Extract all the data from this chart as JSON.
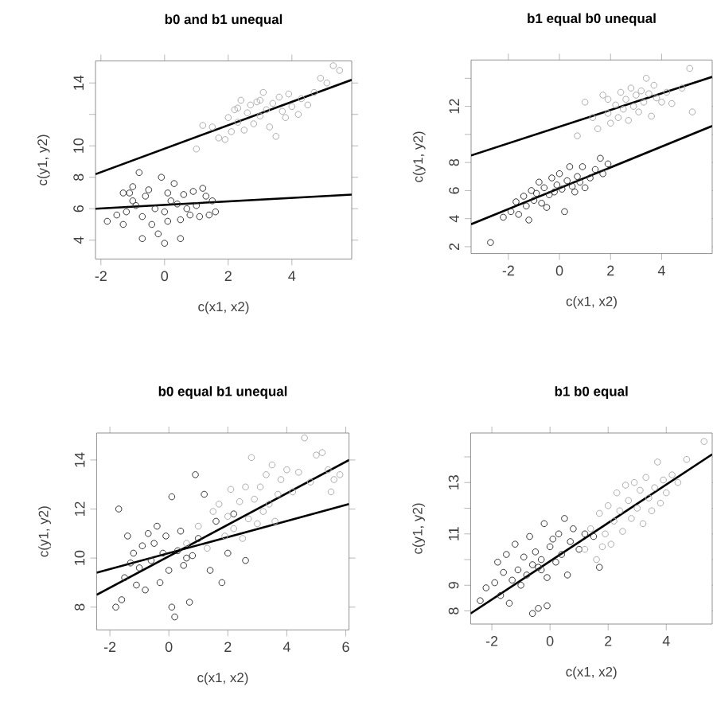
{
  "chart_data": [
    {
      "type": "scatter",
      "title": "b0 and b1 unequal",
      "xlabel": "c(x1, x2)",
      "ylabel": "c(y1, y2)",
      "xlim": [
        -2.17,
        5.88
      ],
      "ylim": [
        2.8,
        15.4
      ],
      "xticks": [
        -2,
        0,
        2,
        4
      ],
      "yticks": [
        4,
        6,
        8,
        10,
        {
          "value": 12,
          "label": null
        },
        14
      ],
      "series": [
        {
          "type": "scatter",
          "marker": "circle",
          "color": "#333333",
          "x": [
            -1.8,
            -1.5,
            -1.3,
            -1.2,
            -1.1,
            -1.0,
            -1.0,
            -0.9,
            -0.8,
            -0.7,
            -0.7,
            -0.6,
            -0.5,
            -0.4,
            -0.3,
            -0.2,
            -0.1,
            0,
            0,
            0.1,
            0.1,
            0.2,
            0.3,
            0.4,
            0.5,
            0.5,
            0.6,
            0.7,
            0.8,
            0.9,
            1.0,
            1.1,
            1.2,
            1.3,
            1.4,
            1.6,
            1.5,
            -1.3
          ],
          "values": [
            5.2,
            5.6,
            5.0,
            5.8,
            7.0,
            6.5,
            7.4,
            6.2,
            8.3,
            5.5,
            4.1,
            6.8,
            7.2,
            5.0,
            6.0,
            4.4,
            8.0,
            3.8,
            5.8,
            7.0,
            5.2,
            6.5,
            7.6,
            6.3,
            5.3,
            4.1,
            6.9,
            6.0,
            5.6,
            7.1,
            6.2,
            5.5,
            7.3,
            6.8,
            5.6,
            5.8,
            6.5,
            7.0
          ]
        },
        {
          "type": "scatter",
          "marker": "circle",
          "color": "#aaaaaa",
          "x": [
            1.0,
            1.2,
            1.5,
            1.7,
            1.9,
            2.0,
            2.1,
            2.2,
            2.3,
            2.4,
            2.5,
            2.6,
            2.7,
            2.8,
            2.9,
            3.0,
            3.1,
            3.2,
            3.3,
            3.4,
            3.5,
            3.6,
            3.7,
            3.8,
            3.9,
            4.0,
            4.2,
            4.3,
            4.5,
            4.7,
            4.9,
            5.1,
            5.3,
            5.5,
            2.3,
            3.0
          ],
          "values": [
            9.8,
            11.3,
            11.2,
            10.5,
            10.4,
            11.8,
            10.9,
            12.3,
            11.5,
            12.9,
            11.0,
            12.1,
            12.6,
            11.4,
            12.8,
            11.9,
            13.4,
            12.3,
            11.2,
            12.7,
            10.6,
            13.1,
            12.2,
            11.8,
            13.3,
            12.5,
            12.0,
            13.0,
            12.6,
            13.4,
            14.3,
            14.0,
            15.1,
            14.8,
            12.4,
            12.9
          ]
        },
        {
          "type": "line",
          "marker": "none",
          "color": "#000000",
          "x": [
            -2.17,
            5.88
          ],
          "values": [
            6.0,
            6.9
          ]
        },
        {
          "type": "line",
          "marker": "none",
          "color": "#000000",
          "x": [
            -2.17,
            5.88
          ],
          "values": [
            8.2,
            14.2
          ]
        }
      ]
    },
    {
      "type": "scatter",
      "title": "b1 equal b0 unequal",
      "xlabel": "c(x1, x2)",
      "ylabel": "c(y1, y2)",
      "xlim": [
        -3.46,
        5.98
      ],
      "ylim": [
        1.51,
        15.3
      ],
      "xticks": [
        -2,
        0,
        2,
        4
      ],
      "yticks": [
        2,
        4,
        6,
        8,
        {
          "value": 10,
          "label": null
        },
        12,
        {
          "value": 14,
          "label": null
        }
      ],
      "series": [
        {
          "type": "scatter",
          "marker": "circle",
          "color": "#333333",
          "x": [
            -2.7,
            -2.2,
            -1.9,
            -1.7,
            -1.6,
            -1.4,
            -1.3,
            -1.1,
            -1.0,
            -0.9,
            -0.8,
            -0.7,
            -0.6,
            -0.5,
            -0.4,
            -0.3,
            -0.2,
            -0.1,
            0,
            0.1,
            0.2,
            0.3,
            0.4,
            0.5,
            0.6,
            0.7,
            0.8,
            0.9,
            1.0,
            1.2,
            1.4,
            1.6,
            1.7,
            1.9,
            -1.2
          ],
          "values": [
            2.3,
            4.1,
            4.5,
            5.2,
            4.3,
            5.6,
            4.9,
            6.0,
            5.3,
            5.8,
            6.6,
            5.1,
            6.2,
            4.8,
            5.7,
            6.9,
            5.9,
            6.4,
            7.2,
            6.1,
            4.5,
            6.7,
            7.7,
            6.3,
            5.9,
            7.0,
            6.6,
            7.7,
            6.2,
            6.9,
            7.5,
            8.3,
            7.2,
            7.9,
            3.9
          ]
        },
        {
          "type": "scatter",
          "marker": "circle",
          "color": "#aaaaaa",
          "x": [
            0.7,
            1.0,
            1.3,
            1.5,
            1.7,
            1.9,
            2.0,
            2.2,
            2.3,
            2.4,
            2.5,
            2.6,
            2.7,
            2.8,
            2.9,
            3.0,
            3.1,
            3.2,
            3.3,
            3.4,
            3.5,
            3.6,
            3.7,
            3.8,
            4.0,
            4.2,
            4.4,
            4.8,
            5.1,
            5.2,
            1.9
          ],
          "values": [
            9.9,
            12.3,
            11.2,
            10.4,
            12.8,
            11.5,
            10.8,
            12.1,
            11.2,
            13.0,
            11.8,
            12.5,
            11.0,
            13.3,
            12.0,
            12.8,
            11.6,
            13.1,
            12.3,
            14.0,
            12.9,
            11.3,
            13.5,
            12.6,
            12.3,
            13.0,
            12.2,
            13.3,
            14.7,
            11.6,
            12.5
          ]
        },
        {
          "type": "line",
          "marker": "none",
          "color": "#000000",
          "x": [
            -3.46,
            5.98
          ],
          "values": [
            3.6,
            10.6
          ]
        },
        {
          "type": "line",
          "marker": "none",
          "color": "#000000",
          "x": [
            -3.46,
            5.98
          ],
          "values": [
            8.5,
            14.1
          ]
        }
      ]
    },
    {
      "type": "scatter",
      "title": "b0 equal b1 unequal",
      "xlabel": "c(x1, x2)",
      "ylabel": "c(y1, y2)",
      "xlim": [
        -2.45,
        6.11
      ],
      "ylim": [
        7.07,
        15.1
      ],
      "xticks": [
        -2,
        0,
        2,
        4,
        6
      ],
      "yticks": [
        8,
        10,
        12,
        14
      ],
      "series": [
        {
          "type": "scatter",
          "marker": "circle",
          "color": "#333333",
          "x": [
            -1.8,
            -1.7,
            -1.6,
            -1.5,
            -1.4,
            -1.3,
            -1.2,
            -1.1,
            -1.0,
            -0.9,
            -0.8,
            -0.7,
            -0.6,
            -0.5,
            -0.4,
            -0.3,
            -0.2,
            -0.1,
            0,
            0.1,
            0.1,
            0.2,
            0.3,
            0.4,
            0.5,
            0.6,
            0.7,
            0.8,
            0.9,
            1.0,
            1.2,
            1.4,
            1.6,
            1.8,
            2.0,
            2.6,
            2.2
          ],
          "values": [
            8.0,
            12.0,
            8.3,
            9.2,
            10.9,
            9.8,
            10.2,
            8.9,
            9.6,
            10.5,
            8.7,
            11.0,
            9.9,
            10.6,
            11.3,
            9.0,
            10.2,
            10.9,
            9.5,
            12.5,
            8.0,
            7.6,
            10.3,
            11.1,
            9.7,
            10.0,
            8.2,
            10.1,
            13.4,
            10.8,
            12.6,
            9.5,
            11.5,
            9.0,
            10.2,
            9.9,
            11.8
          ]
        },
        {
          "type": "scatter",
          "marker": "circle",
          "color": "#aaaaaa",
          "x": [
            0.6,
            1.0,
            1.3,
            1.5,
            1.7,
            1.9,
            2.0,
            2.1,
            2.2,
            2.4,
            2.5,
            2.6,
            2.7,
            2.8,
            2.9,
            3.0,
            3.1,
            3.2,
            3.3,
            3.4,
            3.5,
            3.6,
            3.7,
            3.8,
            4.0,
            4.2,
            4.4,
            4.6,
            4.8,
            5.0,
            5.2,
            5.4,
            5.6,
            5.8,
            5.5
          ],
          "values": [
            10.6,
            11.3,
            10.4,
            11.9,
            12.2,
            10.9,
            11.7,
            12.8,
            11.2,
            12.3,
            10.8,
            12.9,
            11.6,
            14.1,
            12.4,
            11.4,
            12.9,
            11.9,
            13.4,
            12.2,
            13.8,
            11.5,
            12.6,
            13.2,
            13.6,
            12.7,
            13.5,
            14.9,
            13.1,
            14.2,
            14.3,
            13.6,
            13.2,
            13.4,
            12.7
          ]
        },
        {
          "type": "line",
          "marker": "none",
          "color": "#000000",
          "x": [
            -2.45,
            6.11
          ],
          "values": [
            9.4,
            12.2
          ]
        },
        {
          "type": "line",
          "marker": "none",
          "color": "#000000",
          "x": [
            -2.45,
            6.11
          ],
          "values": [
            8.5,
            14.0
          ]
        }
      ]
    },
    {
      "type": "scatter",
      "title": "b1 b0 equal",
      "xlabel": "c(x1, x2)",
      "ylabel": "c(y1, y2)",
      "xlim": [
        -2.73,
        5.58
      ],
      "ylim": [
        7.49,
        14.93
      ],
      "xticks": [
        -2,
        0,
        2,
        4
      ],
      "yticks": [
        8,
        9,
        {
          "value": 10,
          "label": null
        },
        11,
        {
          "value": 12,
          "label": null
        },
        13,
        {
          "value": 14,
          "label": null
        }
      ],
      "series": [
        {
          "type": "scatter",
          "marker": "circle",
          "color": "#333333",
          "x": [
            -2.4,
            -2.2,
            -1.9,
            -1.8,
            -1.7,
            -1.6,
            -1.5,
            -1.4,
            -1.3,
            -1.2,
            -1.1,
            -1.0,
            -0.9,
            -0.8,
            -0.7,
            -0.6,
            -0.6,
            -0.5,
            -0.4,
            -0.3,
            -0.3,
            -0.2,
            -0.1,
            0,
            0.1,
            0.2,
            0.3,
            0.4,
            0.5,
            0.6,
            0.7,
            0.8,
            1.0,
            1.2,
            1.5,
            1.7,
            -0.4,
            -0.1
          ],
          "values": [
            8.4,
            8.9,
            9.1,
            9.9,
            8.6,
            9.5,
            10.2,
            8.3,
            9.2,
            10.6,
            9.6,
            9.0,
            10.1,
            9.4,
            10.9,
            7.9,
            9.8,
            10.3,
            9.7,
            10.0,
            9.6,
            11.4,
            9.3,
            10.5,
            10.8,
            9.9,
            11.0,
            10.2,
            11.6,
            9.4,
            10.7,
            11.2,
            10.4,
            11.0,
            10.9,
            9.7,
            8.1,
            8.2
          ]
        },
        {
          "type": "scatter",
          "marker": "circle",
          "color": "#aaaaaa",
          "x": [
            1.2,
            1.4,
            1.6,
            1.7,
            1.9,
            2.0,
            2.1,
            2.2,
            2.3,
            2.4,
            2.5,
            2.6,
            2.7,
            2.8,
            2.9,
            3.0,
            3.1,
            3.2,
            3.3,
            3.4,
            3.5,
            3.6,
            3.7,
            3.8,
            3.9,
            4.0,
            4.2,
            4.4,
            4.7,
            5.3,
            1.8
          ],
          "values": [
            10.4,
            11.2,
            10.0,
            11.8,
            11.0,
            12.1,
            10.6,
            11.5,
            12.6,
            11.9,
            11.1,
            12.9,
            12.3,
            11.6,
            13.0,
            12.0,
            12.7,
            11.4,
            13.2,
            12.4,
            11.9,
            12.8,
            13.8,
            12.2,
            13.1,
            12.6,
            13.3,
            13.0,
            13.9,
            14.6,
            10.5
          ]
        },
        {
          "type": "line",
          "marker": "none",
          "color": "#000000",
          "x": [
            -2.73,
            5.58
          ],
          "values": [
            7.9,
            14.1
          ]
        }
      ]
    }
  ]
}
